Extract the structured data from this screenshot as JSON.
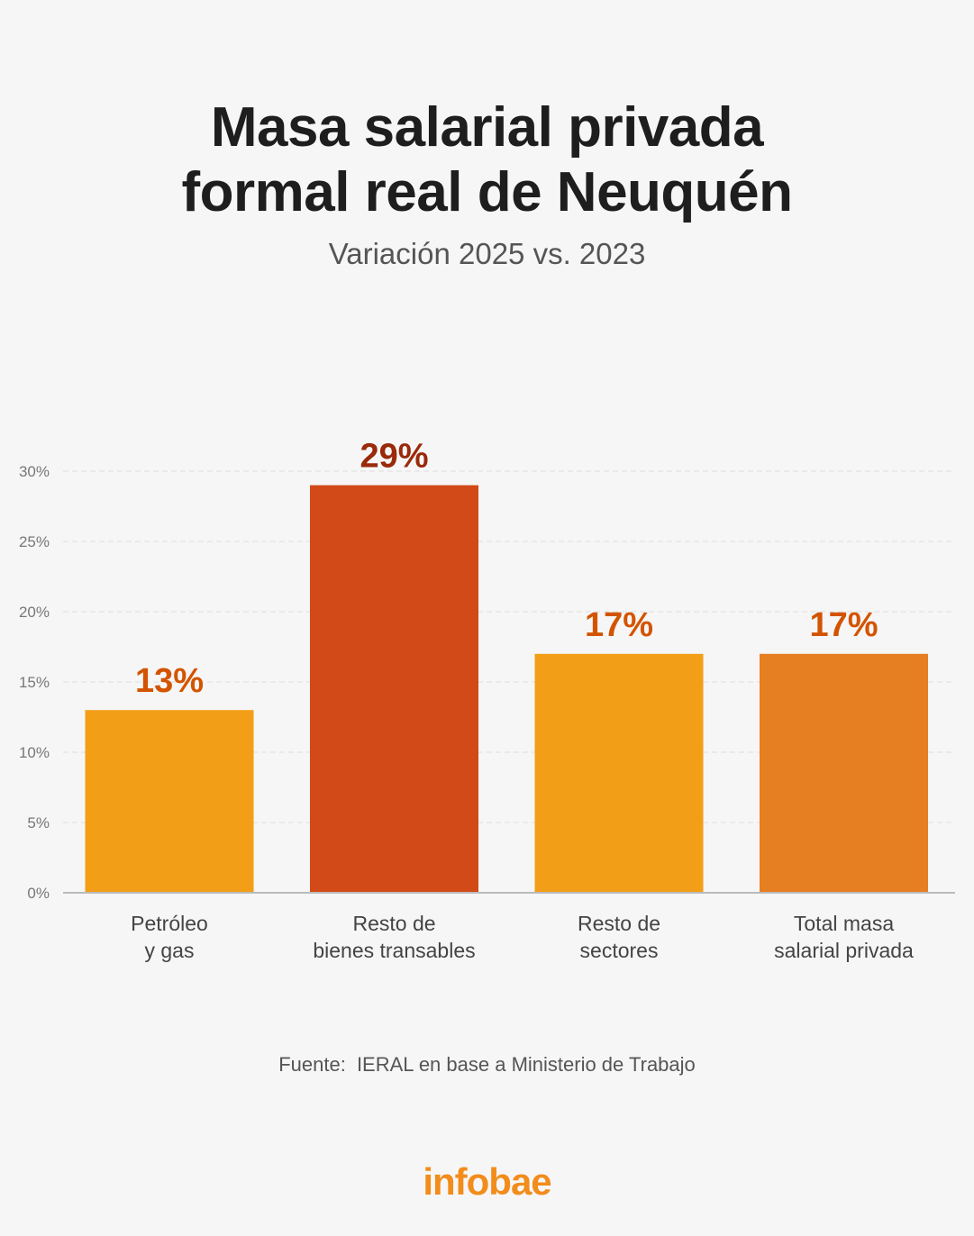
{
  "header": {
    "title_line1": "Masa salarial privada",
    "title_line2": "formal real de Neuquén",
    "subtitle": "Variación 2025 vs. 2023"
  },
  "chart_data": {
    "type": "bar",
    "categories": [
      [
        "Petróleo",
        "y gas"
      ],
      [
        "Resto de",
        "bienes transables"
      ],
      [
        "Resto de",
        "sectores"
      ],
      [
        "Total masa",
        "salarial privada"
      ]
    ],
    "values": [
      13,
      29,
      17,
      17
    ],
    "value_labels": [
      "13%",
      "29%",
      "17%",
      "17%"
    ],
    "bar_colors": [
      "#f29e17",
      "#d24a17",
      "#f29e17",
      "#e67e22"
    ],
    "label_colors": [
      "#d35400",
      "#9a2a0a",
      "#d35400",
      "#d35400"
    ],
    "ylim": [
      0,
      30
    ],
    "yticks": [
      0,
      5,
      10,
      15,
      20,
      25,
      30
    ],
    "ytick_labels": [
      "0%",
      "5%",
      "10%",
      "15%",
      "20%",
      "25%",
      "30%"
    ],
    "grid": true,
    "xlabel": "",
    "ylabel": ""
  },
  "footer": {
    "source_label": "Fuente:",
    "source_text": "IERAL en base a Ministerio de Trabajo",
    "brand": "infobae"
  },
  "colors": {
    "background": "#f6f6f6",
    "title": "#1e1e1e",
    "brand": "#f28c1b",
    "grid": "#dddddd",
    "axis": "#bbbbbb"
  }
}
